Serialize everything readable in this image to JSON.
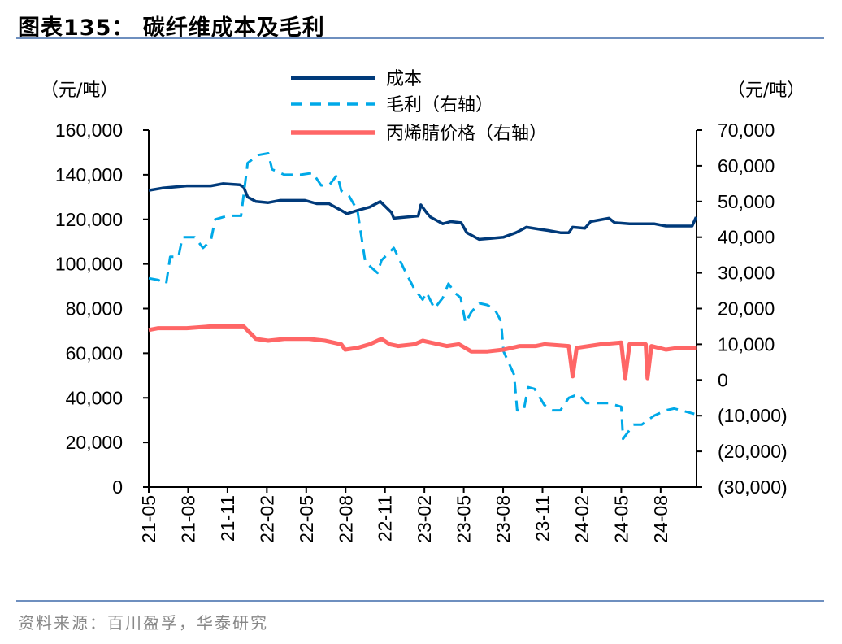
{
  "title": "图表135：  碳纤维成本及毛利",
  "source": "资料来源：百川盈孚，华泰研究",
  "chart_data": {
    "type": "line",
    "title": "碳纤维成本及毛利",
    "left_unit": "（元/吨）",
    "right_unit": "（元/吨）",
    "ylim_left": [
      0,
      160000
    ],
    "ylim_right": [
      -30000,
      70000
    ],
    "left_ticks": [
      "0",
      "20,000",
      "40,000",
      "60,000",
      "80,000",
      "100,000",
      "120,000",
      "140,000",
      "160,000"
    ],
    "right_ticks": [
      "(30,000)",
      "(20,000)",
      "(10,000)",
      "0",
      "10,000",
      "20,000",
      "30,000",
      "40,000",
      "50,000",
      "60,000",
      "70,000"
    ],
    "x_ticks": [
      "21-05",
      "21-08",
      "21-11",
      "22-02",
      "22-05",
      "22-08",
      "22-11",
      "23-02",
      "23-05",
      "23-08",
      "23-11",
      "24-02",
      "24-05",
      "24-08"
    ],
    "grid": false,
    "legend_position": "top-center",
    "series": [
      {
        "name": "成本",
        "axis": "left",
        "color": "#003a7a",
        "style": "solid",
        "points": [
          [
            "2021-05-01",
            133000
          ],
          [
            "2021-06-02",
            134000
          ],
          [
            "2021-07-28",
            135000
          ],
          [
            "2021-09-23",
            135000
          ],
          [
            "2021-10-21",
            136000
          ],
          [
            "2021-11-29",
            135500
          ],
          [
            "2021-12-08",
            134500
          ],
          [
            "2021-12-17",
            130000
          ],
          [
            "2022-01-06",
            128000
          ],
          [
            "2022-02-04",
            127500
          ],
          [
            "2022-03-02",
            128500
          ],
          [
            "2022-04-28",
            128500
          ],
          [
            "2022-05-25",
            127000
          ],
          [
            "2022-06-23",
            127000
          ],
          [
            "2022-07-21",
            124000
          ],
          [
            "2022-08-04",
            122500
          ],
          [
            "2022-08-28",
            124000
          ],
          [
            "2022-09-26",
            125500
          ],
          [
            "2022-10-20",
            128000
          ],
          [
            "2022-11-16",
            123000
          ],
          [
            "2022-11-21",
            120500
          ],
          [
            "2022-12-19",
            121000
          ],
          [
            "2023-01-17",
            121500
          ],
          [
            "2023-01-23",
            126500
          ],
          [
            "2023-02-06",
            123000
          ],
          [
            "2023-02-15",
            121000
          ],
          [
            "2023-03-13",
            118000
          ],
          [
            "2023-04-01",
            119000
          ],
          [
            "2023-04-25",
            118500
          ],
          [
            "2023-05-08",
            114000
          ],
          [
            "2023-06-06",
            111000
          ],
          [
            "2023-07-04",
            111500
          ],
          [
            "2023-08-02",
            112000
          ],
          [
            "2023-08-30",
            114000
          ],
          [
            "2023-09-24",
            116500
          ],
          [
            "2023-10-26",
            115500
          ],
          [
            "2023-11-14",
            115000
          ],
          [
            "2023-12-12",
            114000
          ],
          [
            "2024-01-01",
            114000
          ],
          [
            "2024-01-10",
            116500
          ],
          [
            "2024-02-08",
            116000
          ],
          [
            "2024-02-21",
            119000
          ],
          [
            "2024-04-03",
            120500
          ],
          [
            "2024-04-16",
            118500
          ],
          [
            "2024-05-20",
            118000
          ],
          [
            "2024-06-18",
            118000
          ],
          [
            "2024-07-16",
            118000
          ],
          [
            "2024-08-13",
            117000
          ],
          [
            "2024-09-20",
            117000
          ],
          [
            "2024-10-13",
            117000
          ],
          [
            "2024-10-22",
            121000
          ]
        ]
      },
      {
        "name": "毛利（右轴）",
        "axis": "right",
        "color": "#00a9e8",
        "style": "dashed",
        "points": [
          [
            "2021-05-01",
            28500
          ],
          [
            "2021-05-23",
            28000
          ],
          [
            "2021-06-11",
            27000
          ],
          [
            "2021-06-20",
            34500
          ],
          [
            "2021-07-09",
            34500
          ],
          [
            "2021-07-18",
            40000
          ],
          [
            "2021-08-16",
            40000
          ],
          [
            "2021-09-05",
            37000
          ],
          [
            "2021-09-23",
            39000
          ],
          [
            "2021-10-03",
            45000
          ],
          [
            "2021-11-01",
            46000
          ],
          [
            "2021-12-02",
            46000
          ],
          [
            "2021-12-17",
            60800
          ],
          [
            "2022-01-11",
            63000
          ],
          [
            "2022-02-04",
            63500
          ],
          [
            "2022-02-13",
            59000
          ],
          [
            "2022-03-11",
            57500
          ],
          [
            "2022-04-18",
            57500
          ],
          [
            "2022-05-16",
            58000
          ],
          [
            "2022-06-05",
            54500
          ],
          [
            "2022-06-23",
            54500
          ],
          [
            "2022-07-12",
            57500
          ],
          [
            "2022-07-21",
            53000
          ],
          [
            "2022-08-09",
            51500
          ],
          [
            "2022-08-28",
            47500
          ],
          [
            "2022-09-16",
            33000
          ],
          [
            "2022-10-14",
            30000
          ],
          [
            "2022-10-23",
            33500
          ],
          [
            "2022-11-21",
            37000
          ],
          [
            "2022-12-19",
            30000
          ],
          [
            "2023-01-08",
            25500
          ],
          [
            "2023-01-27",
            22500
          ],
          [
            "2023-02-06",
            24500
          ],
          [
            "2023-02-24",
            20000
          ],
          [
            "2023-03-13",
            23000
          ],
          [
            "2023-03-26",
            27000
          ],
          [
            "2023-04-10",
            24500
          ],
          [
            "2023-04-24",
            23000
          ],
          [
            "2023-05-05",
            16000
          ],
          [
            "2023-05-18",
            19000
          ],
          [
            "2023-06-06",
            21500
          ],
          [
            "2023-06-25",
            21000
          ],
          [
            "2023-07-13",
            19500
          ],
          [
            "2023-07-26",
            16500
          ],
          [
            "2023-08-02",
            8000
          ],
          [
            "2023-08-26",
            1500
          ],
          [
            "2023-09-03",
            -8500
          ],
          [
            "2023-09-18",
            -8500
          ],
          [
            "2023-09-28",
            -2000
          ],
          [
            "2023-10-13",
            -2500
          ],
          [
            "2023-11-05",
            -7000
          ],
          [
            "2023-11-23",
            -8500
          ],
          [
            "2023-12-12",
            -8500
          ],
          [
            "2024-01-01",
            -5000
          ],
          [
            "2024-01-23",
            -4000
          ],
          [
            "2024-02-11",
            -6500
          ],
          [
            "2024-04-03",
            -6500
          ],
          [
            "2024-05-01",
            -7500
          ],
          [
            "2024-05-05",
            -16500
          ],
          [
            "2024-05-29",
            -12500
          ],
          [
            "2024-06-18",
            -12500
          ],
          [
            "2024-07-16",
            -10000
          ],
          [
            "2024-08-13",
            -8500
          ],
          [
            "2024-09-02",
            -8000
          ],
          [
            "2024-10-18",
            -9500
          ]
        ]
      },
      {
        "name": "丙烯腈价格（右轴）",
        "axis": "right",
        "color": "#ff6666",
        "style": "solid",
        "points": [
          [
            "2021-05-01",
            14000
          ],
          [
            "2021-05-23",
            14500
          ],
          [
            "2021-07-28",
            14500
          ],
          [
            "2021-09-23",
            15000
          ],
          [
            "2021-12-08",
            15000
          ],
          [
            "2022-01-06",
            11500
          ],
          [
            "2022-02-04",
            11000
          ],
          [
            "2022-03-11",
            11500
          ],
          [
            "2022-05-07",
            11500
          ],
          [
            "2022-06-14",
            11000
          ],
          [
            "2022-07-21",
            10000
          ],
          [
            "2022-07-30",
            8500
          ],
          [
            "2022-08-28",
            9000
          ],
          [
            "2022-09-26",
            10000
          ],
          [
            "2022-10-23",
            11500
          ],
          [
            "2022-11-12",
            10000
          ],
          [
            "2022-12-01",
            9500
          ],
          [
            "2023-01-08",
            10000
          ],
          [
            "2023-01-27",
            11000
          ],
          [
            "2023-02-15",
            10500
          ],
          [
            "2023-03-22",
            9500
          ],
          [
            "2023-04-20",
            10000
          ],
          [
            "2023-05-18",
            8000
          ],
          [
            "2023-06-25",
            8000
          ],
          [
            "2023-08-02",
            8500
          ],
          [
            "2023-09-09",
            9500
          ],
          [
            "2023-10-16",
            9500
          ],
          [
            "2023-11-05",
            10000
          ],
          [
            "2024-01-01",
            9500
          ],
          [
            "2024-01-10",
            1000
          ],
          [
            "2024-01-19",
            9000
          ],
          [
            "2024-03-15",
            10000
          ],
          [
            "2024-05-01",
            10500
          ],
          [
            "2024-05-10",
            500
          ],
          [
            "2024-05-20",
            10000
          ],
          [
            "2024-06-27",
            10000
          ],
          [
            "2024-07-01",
            500
          ],
          [
            "2024-07-10",
            9500
          ],
          [
            "2024-08-13",
            8500
          ],
          [
            "2024-09-11",
            9000
          ],
          [
            "2024-10-22",
            9000
          ]
        ]
      }
    ]
  }
}
